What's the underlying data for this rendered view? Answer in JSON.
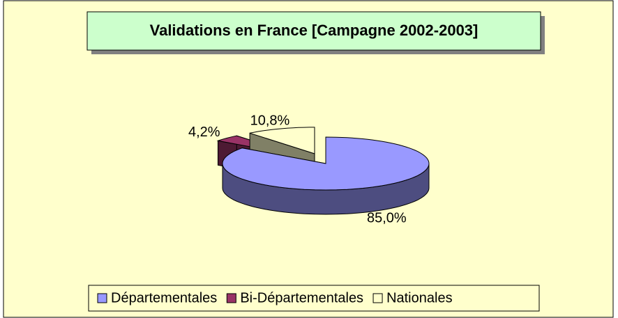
{
  "chart_data": {
    "type": "pie3d",
    "title": "Validations en France [Campagne 2002-2003]",
    "categories": [
      "Départementales",
      "Bi-Départementales",
      "Nationales"
    ],
    "values": [
      85.0,
      4.2,
      10.8
    ],
    "value_labels": [
      "85,0%",
      "4,2%",
      "10,8%"
    ],
    "colors": [
      "#9999ff",
      "#993366",
      "#ffffcc"
    ],
    "legend": "bottom"
  }
}
